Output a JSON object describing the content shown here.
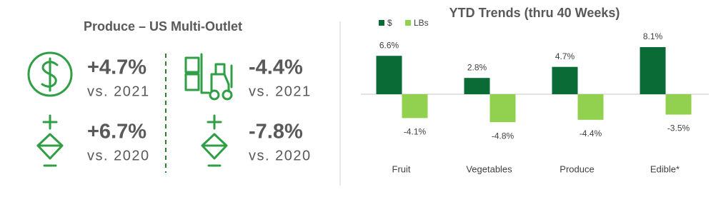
{
  "kpi_panel": {
    "title": "Produce – US Multi-Outlet",
    "items": [
      {
        "value": "+4.7%",
        "label": "vs. 2021"
      },
      {
        "value": "+6.7%",
        "label": "vs. 2020"
      },
      {
        "value": "-4.4%",
        "label": "vs. 2021"
      },
      {
        "value": "-7.8%",
        "label": "vs. 2020"
      }
    ]
  },
  "chart_data": {
    "type": "bar",
    "title": "YTD Trends (thru 40 Weeks)",
    "categories": [
      "Fruit",
      "Vegetables",
      "Produce",
      "Edible*"
    ],
    "series": [
      {
        "name": "$",
        "color": "#0b6b36",
        "values": [
          6.6,
          2.8,
          4.7,
          8.1
        ],
        "value_labels": [
          "6.6%",
          "2.8%",
          "4.7%",
          "8.1%"
        ]
      },
      {
        "name": "LBs",
        "color": "#92d050",
        "values": [
          -4.1,
          -4.8,
          -4.4,
          -3.5
        ],
        "value_labels": [
          "-4.1%",
          "-4.8%",
          "-4.4%",
          "-3.5%"
        ]
      }
    ]
  }
}
